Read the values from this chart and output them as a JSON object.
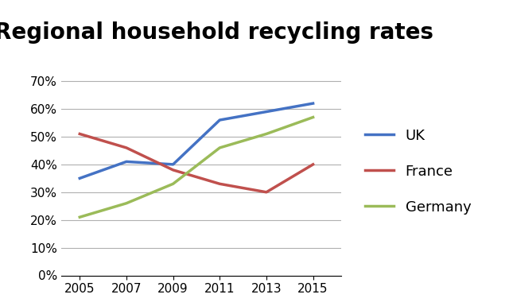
{
  "title": "Regional household recycling rates",
  "years": [
    2005,
    2007,
    2009,
    2011,
    2013,
    2015
  ],
  "UK": [
    35,
    41,
    40,
    56,
    59,
    62
  ],
  "France": [
    51,
    46,
    38,
    33,
    30,
    40
  ],
  "Germany": [
    21,
    26,
    33,
    46,
    51,
    57
  ],
  "UK_color": "#4472C4",
  "France_color": "#C0504D",
  "Germany_color": "#9BBB59",
  "line_width": 2.5,
  "ylim": [
    0,
    75
  ],
  "yticks": [
    0,
    10,
    20,
    30,
    40,
    50,
    60,
    70
  ],
  "ytick_labels": [
    "0%",
    "10%",
    "20%",
    "30%",
    "40%",
    "50%",
    "60%",
    "70%"
  ],
  "title_fontsize": 20,
  "legend_fontsize": 13,
  "tick_fontsize": 11,
  "background_color": "#ffffff",
  "grid_color": "#b0b0b0"
}
